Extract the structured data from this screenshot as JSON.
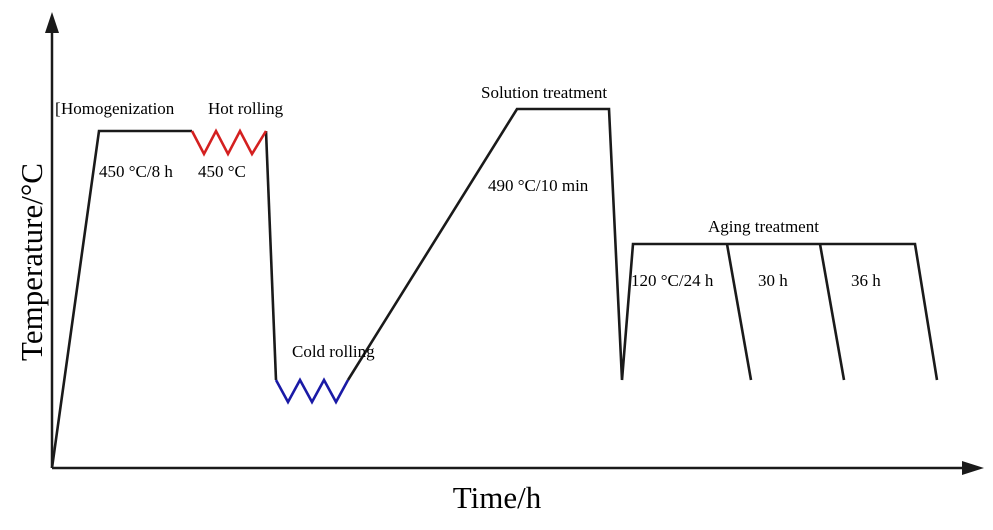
{
  "axes": {
    "x_label": "Time/h",
    "y_label": "Temperature/°C"
  },
  "stages": {
    "homogenization": {
      "title": "Homogenization",
      "condition": "450 °C/8 h"
    },
    "hot_rolling": {
      "title": "Hot rolling",
      "condition": "450 °C"
    },
    "cold_rolling": {
      "title": "Cold rolling"
    },
    "solution_treatment": {
      "title": "Solution treatment",
      "condition": "490 °C/10 min"
    },
    "aging_treatment": {
      "title": "Aging treatment",
      "conditions": [
        "120 °C/24 h",
        "30 h",
        "36 h"
      ]
    }
  },
  "colors": {
    "profile": "#1a1a1a",
    "axis": "#1a1a1a",
    "hot_rolling": "#d42020",
    "cold_rolling": "#1a1aa6"
  }
}
